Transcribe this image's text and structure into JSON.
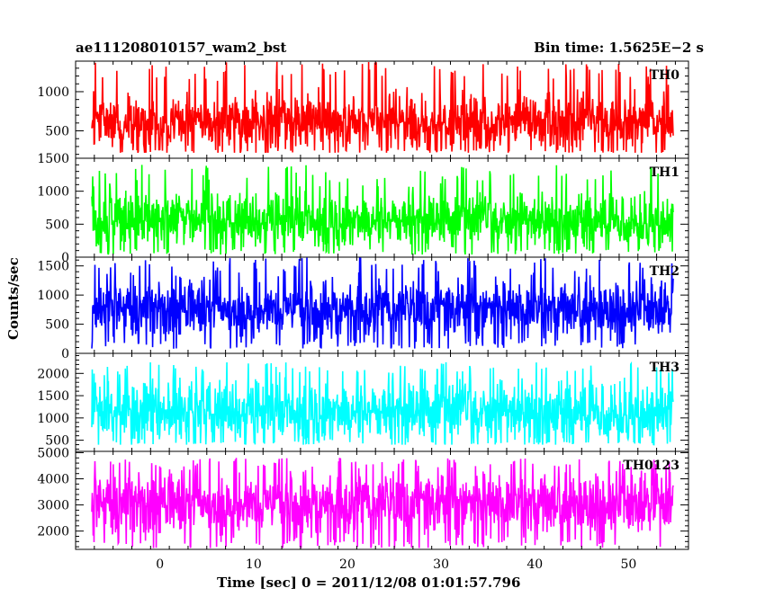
{
  "header": {
    "left_title": "ae111208010157_wam2_bst",
    "right_title": "Bin time: 1.5625E−2 s"
  },
  "axes": {
    "xlabel": "Time [sec] 0 = 2011/12/08 01:01:57.796",
    "ylabel": "Counts/sec"
  },
  "chart_data": [
    {
      "type": "line",
      "name": "TH0",
      "color": "#ff0000",
      "x_range": [
        -9.0,
        56.4
      ],
      "x_ticks": [
        0,
        10,
        20,
        30,
        40,
        50
      ],
      "ylim": [
        150,
        1390
      ],
      "y_ticks": [
        500,
        1000
      ],
      "y_tick_labels": [
        "500",
        "1000"
      ],
      "signal": {
        "mean": 600,
        "band_low": 280,
        "band_high": 1000,
        "min": 220,
        "max": 1390
      }
    },
    {
      "type": "line",
      "name": "TH1",
      "color": "#00ff00",
      "x_range": [
        -9.0,
        56.4
      ],
      "x_ticks": [
        0,
        10,
        20,
        30,
        40,
        50
      ],
      "ylim": [
        0,
        1500
      ],
      "y_ticks": [
        0,
        500,
        1000,
        1500
      ],
      "y_tick_labels": [
        "0",
        "500",
        "1000",
        "1500"
      ],
      "signal": {
        "mean": 560,
        "band_low": 180,
        "band_high": 1000,
        "min": 40,
        "max": 1400
      }
    },
    {
      "type": "line",
      "name": "TH2",
      "color": "#0000ff",
      "x_range": [
        -9.0,
        56.4
      ],
      "x_ticks": [
        0,
        10,
        20,
        30,
        40,
        50
      ],
      "ylim": [
        0,
        1650
      ],
      "y_ticks": [
        0,
        500,
        1000,
        1500
      ],
      "y_tick_labels": [
        "0",
        "500",
        "1000",
        "1500"
      ],
      "signal": {
        "mean": 760,
        "band_low": 280,
        "band_high": 1250,
        "min": 80,
        "max": 1650
      }
    },
    {
      "type": "line",
      "name": "TH3",
      "color": "#00ffff",
      "x_range": [
        -9.0,
        56.4
      ],
      "x_ticks": [
        0,
        10,
        20,
        30,
        40,
        50
      ],
      "ylim": [
        250,
        2450
      ],
      "y_ticks": [
        500,
        1000,
        1500,
        2000
      ],
      "y_tick_labels": [
        "500",
        "1000",
        "1500",
        "2000"
      ],
      "signal": {
        "mean": 1150,
        "band_low": 500,
        "band_high": 1900,
        "min": 400,
        "max": 2250
      }
    },
    {
      "type": "line",
      "name": "TH0123",
      "color": "#ff00ff",
      "x_range": [
        -9.0,
        56.4
      ],
      "x_ticks": [
        0,
        10,
        20,
        30,
        40,
        50
      ],
      "ylim": [
        1300,
        5050
      ],
      "y_ticks": [
        2000,
        3000,
        4000,
        5000
      ],
      "y_tick_labels": [
        "2000",
        "3000",
        "4000",
        "5000"
      ],
      "signal": {
        "mean": 3050,
        "band_low": 1800,
        "band_high": 4300,
        "min": 1350,
        "max": 4800
      }
    }
  ]
}
